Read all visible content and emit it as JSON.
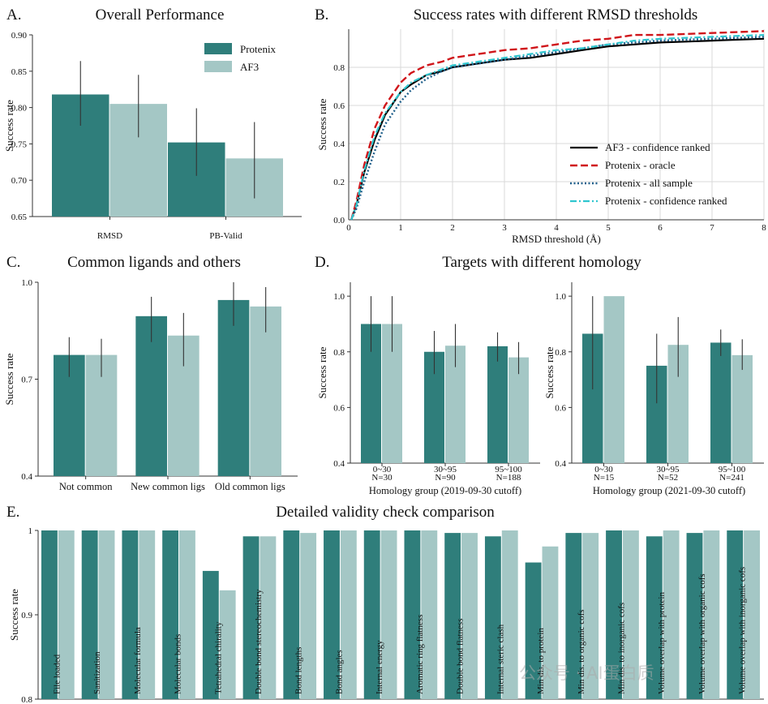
{
  "colors": {
    "protenix": "#2f7e7b",
    "af3": "#a4c7c5",
    "oracle": "#d0151a",
    "af3_line": "#000000",
    "all_sample": "#1f5f8b",
    "conf_ranked": "#2fc6cf",
    "axis": "#333333",
    "grid": "#d9d9d9"
  },
  "watermark": "公众号 · AI蛋白质",
  "chart_data": [
    {
      "id": "A",
      "panel_letter": "A.",
      "type": "bar",
      "title": "Overall Performance",
      "ylabel": "Success rate",
      "ylim": [
        0.65,
        0.9
      ],
      "yticks": [
        0.65,
        0.7,
        0.75,
        0.8,
        0.85,
        0.9
      ],
      "ytick_labels": [
        "0.65",
        "0.70",
        "0.75",
        "0.80",
        "0.85",
        "0.90"
      ],
      "categories": [
        "RMSD",
        "PB-Valid"
      ],
      "legend": [
        "Protenix",
        "AF3"
      ],
      "series": [
        {
          "name": "Protenix",
          "values": [
            0.818,
            0.752
          ],
          "err_low": [
            0.775,
            0.706
          ],
          "err_high": [
            0.864,
            0.799
          ]
        },
        {
          "name": "AF3",
          "values": [
            0.805,
            0.73
          ],
          "err_low": [
            0.759,
            0.675
          ],
          "err_high": [
            0.845,
            0.78
          ]
        }
      ]
    },
    {
      "id": "B",
      "panel_letter": "B.",
      "type": "line",
      "title": "Success rates with different RMSD thresholds",
      "xlabel": "RMSD threshold (Å)",
      "ylabel": "Success rate",
      "xlim": [
        0,
        8
      ],
      "ylim": [
        0,
        1.0
      ],
      "xticks": [
        0,
        1,
        2,
        3,
        4,
        5,
        6,
        7,
        8
      ],
      "xtick_labels": [
        "0",
        "1",
        "2",
        "3",
        "4",
        "5",
        "6",
        "7",
        "8"
      ],
      "yticks": [
        0,
        0.2,
        0.4,
        0.6,
        0.8
      ],
      "ytick_labels": [
        "0.0",
        "0.2",
        "0.4",
        "0.6",
        "0.8"
      ],
      "grid": true,
      "legend_position": "bottom-right",
      "series": [
        {
          "name": "AF3 - confidence ranked",
          "style": "solid",
          "x": [
            0.05,
            0.15,
            0.3,
            0.5,
            0.7,
            1.0,
            1.2,
            1.5,
            1.8,
            2.0,
            2.5,
            3.0,
            3.5,
            4.0,
            4.5,
            5.0,
            5.5,
            6.0,
            6.5,
            7.0,
            7.5,
            8.0
          ],
          "y": [
            0.0,
            0.08,
            0.25,
            0.42,
            0.55,
            0.67,
            0.71,
            0.76,
            0.78,
            0.8,
            0.82,
            0.84,
            0.85,
            0.87,
            0.89,
            0.91,
            0.92,
            0.93,
            0.935,
            0.94,
            0.945,
            0.95
          ]
        },
        {
          "name": "Protenix - oracle",
          "style": "dashed",
          "x": [
            0.05,
            0.15,
            0.3,
            0.5,
            0.7,
            1.0,
            1.2,
            1.5,
            1.8,
            2.0,
            2.5,
            3.0,
            3.5,
            4.0,
            4.5,
            5.0,
            5.5,
            6.0,
            6.5,
            7.0,
            7.5,
            8.0
          ],
          "y": [
            0.0,
            0.1,
            0.29,
            0.48,
            0.6,
            0.72,
            0.77,
            0.81,
            0.83,
            0.85,
            0.87,
            0.89,
            0.9,
            0.92,
            0.94,
            0.95,
            0.97,
            0.97,
            0.975,
            0.98,
            0.985,
            0.99
          ]
        },
        {
          "name": "Protenix - all sample",
          "style": "dotted",
          "x": [
            0.05,
            0.15,
            0.3,
            0.5,
            0.7,
            1.0,
            1.2,
            1.5,
            1.8,
            2.0,
            2.5,
            3.0,
            3.5,
            4.0,
            4.5,
            5.0,
            5.5,
            6.0,
            6.5,
            7.0,
            7.5,
            8.0
          ],
          "y": [
            0.0,
            0.06,
            0.2,
            0.36,
            0.5,
            0.62,
            0.68,
            0.74,
            0.78,
            0.8,
            0.82,
            0.84,
            0.86,
            0.88,
            0.9,
            0.92,
            0.93,
            0.94,
            0.945,
            0.95,
            0.955,
            0.96
          ]
        },
        {
          "name": "Protenix - confidence ranked",
          "style": "dashdot",
          "x": [
            0.05,
            0.15,
            0.3,
            0.5,
            0.7,
            1.0,
            1.2,
            1.5,
            1.8,
            2.0,
            2.5,
            3.0,
            3.5,
            4.0,
            4.5,
            5.0,
            5.5,
            6.0,
            6.5,
            7.0,
            7.5,
            8.0
          ],
          "y": [
            0.0,
            0.08,
            0.26,
            0.44,
            0.56,
            0.67,
            0.72,
            0.76,
            0.79,
            0.81,
            0.83,
            0.85,
            0.87,
            0.89,
            0.9,
            0.92,
            0.94,
            0.95,
            0.955,
            0.96,
            0.965,
            0.97
          ]
        }
      ]
    },
    {
      "id": "C",
      "panel_letter": "C.",
      "type": "bar",
      "title": "Common ligands and others",
      "ylabel": "Success rate",
      "ylim": [
        0.4,
        1.0
      ],
      "yticks": [
        0.4,
        0.7,
        1.0
      ],
      "ytick_labels": [
        "0.4",
        "0.7",
        "1.0"
      ],
      "categories": [
        "Not common",
        "New common ligs",
        "Old common ligs"
      ],
      "series": [
        {
          "name": "Protenix",
          "values": [
            0.775,
            0.895,
            0.945
          ],
          "err_low": [
            0.707,
            0.815,
            0.865
          ],
          "err_high": [
            0.83,
            0.955,
            1.0
          ]
        },
        {
          "name": "AF3",
          "values": [
            0.775,
            0.835,
            0.925
          ],
          "err_low": [
            0.707,
            0.74,
            0.845
          ],
          "err_high": [
            0.825,
            0.905,
            0.985
          ]
        }
      ]
    },
    {
      "id": "D1",
      "panel_letter": "D.",
      "type": "bar",
      "title": "Targets with different homology",
      "xlabel": "Homology group (2019-09-30 cutoff)",
      "ylabel": "Success rate",
      "ylim": [
        0.4,
        1.05
      ],
      "yticks": [
        0.4,
        0.6,
        0.8,
        1.0
      ],
      "ytick_labels": [
        "0.4",
        "0.6",
        "0.8",
        "1.0"
      ],
      "categories": [
        "0~30",
        "30~95",
        "95~100"
      ],
      "counts": [
        "N=30",
        "N=90",
        "N=188"
      ],
      "series": [
        {
          "name": "Protenix",
          "values": [
            0.9,
            0.8,
            0.82
          ],
          "err_low": [
            0.8,
            0.72,
            0.765
          ],
          "err_high": [
            1.0,
            0.875,
            0.87
          ]
        },
        {
          "name": "AF3",
          "values": [
            0.9,
            0.822,
            0.78
          ],
          "err_low": [
            0.8,
            0.745,
            0.72
          ],
          "err_high": [
            1.0,
            0.9,
            0.835
          ]
        }
      ]
    },
    {
      "id": "D2",
      "type": "bar",
      "title": "",
      "xlabel": "Homology group (2021-09-30 cutoff)",
      "ylabel": "Success rate",
      "ylim": [
        0.4,
        1.05
      ],
      "yticks": [
        0.4,
        0.6,
        0.8,
        1.0
      ],
      "ytick_labels": [
        "0.4",
        "0.6",
        "0.8",
        "1.0"
      ],
      "categories": [
        "0~30",
        "30~95",
        "95~100"
      ],
      "counts": [
        "N=15",
        "N=52",
        "N=241"
      ],
      "series": [
        {
          "name": "Protenix",
          "values": [
            0.865,
            0.75,
            0.833
          ],
          "err_low": [
            0.665,
            0.615,
            0.785
          ],
          "err_high": [
            1.0,
            0.865,
            0.88
          ]
        },
        {
          "name": "AF3",
          "values": [
            1.0,
            0.825,
            0.788
          ],
          "err_low": [
            1.0,
            0.71,
            0.735
          ],
          "err_high": [
            1.0,
            0.925,
            0.845
          ]
        }
      ]
    },
    {
      "id": "E",
      "panel_letter": "E.",
      "type": "bar",
      "title": "Detailed validity check comparison",
      "ylabel": "Success rate",
      "ylim": [
        0.8,
        1.0
      ],
      "yticks": [
        0.8,
        0.9,
        1.0
      ],
      "ytick_labels": [
        "0.8",
        "0.9",
        "1"
      ],
      "categories": [
        "File loaded",
        "Sanitization",
        "Molecular formula",
        "Molecular bonds",
        "Tetrahedral chirality",
        "Double bond stereochemistry",
        "Bond lengths",
        "Bond angles",
        "Internal energy",
        "Aromatic ring flatness",
        "Double bond flatness",
        "Internal steric clash",
        "Min dis. to protein",
        "Min dis. to organic cofs",
        "Min dis. to inorganic cofs",
        "Volume overlap with protein",
        "Volume overlap with organic cofs",
        "Volume overlap with inorganic cofs"
      ],
      "series": [
        {
          "name": "Protenix",
          "values": [
            1.0,
            1.0,
            1.0,
            1.0,
            0.952,
            0.993,
            1.0,
            1.0,
            1.0,
            1.0,
            0.997,
            0.993,
            0.962,
            0.997,
            1.0,
            0.993,
            0.997,
            1.0
          ]
        },
        {
          "name": "AF3",
          "values": [
            1.0,
            1.0,
            1.0,
            1.0,
            0.929,
            0.993,
            0.997,
            1.0,
            1.0,
            1.0,
            0.997,
            1.0,
            0.981,
            0.997,
            1.0,
            1.0,
            1.0,
            1.0
          ]
        }
      ]
    }
  ]
}
